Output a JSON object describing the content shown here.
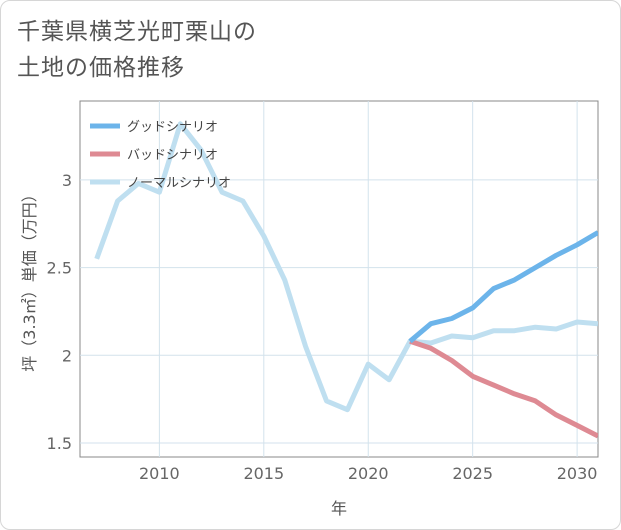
{
  "title_lines": [
    "千葉県横芝光町栗山の",
    "土地の価格推移"
  ],
  "chart_data": {
    "type": "line",
    "xlabel": "年",
    "ylabel": "坪（3.3㎡）単価（万円）",
    "xlim": [
      2006.2,
      2031
    ],
    "ylim": [
      1.42,
      3.45
    ],
    "x_ticks": [
      2010,
      2015,
      2020,
      2025,
      2030
    ],
    "x_tick_labels": [
      "2010",
      "2015",
      "2020",
      "2025",
      "2030"
    ],
    "y_ticks": [
      1.5,
      2,
      2.5,
      3
    ],
    "y_tick_labels": [
      "1.5",
      "2",
      "2.5",
      "3"
    ],
    "grid": true,
    "legend_position": "top-left",
    "series": [
      {
        "name": "グッドシナリオ",
        "color": "#6cb4ea",
        "x": [
          2022,
          2023,
          2024,
          2025,
          2026,
          2027,
          2028,
          2029,
          2030,
          2031
        ],
        "y": [
          2.08,
          2.18,
          2.21,
          2.27,
          2.38,
          2.43,
          2.5,
          2.57,
          2.63,
          2.7
        ]
      },
      {
        "name": "バッドシナリオ",
        "color": "#de8a93",
        "x": [
          2022,
          2023,
          2024,
          2025,
          2026,
          2027,
          2028,
          2029,
          2030,
          2031
        ],
        "y": [
          2.08,
          2.04,
          1.97,
          1.88,
          1.83,
          1.78,
          1.74,
          1.66,
          1.6,
          1.54
        ]
      },
      {
        "name": "ノーマルシナリオ",
        "color": "#bfdff0",
        "x": [
          2007,
          2008,
          2009,
          2010,
          2011,
          2012,
          2013,
          2014,
          2015,
          2016,
          2017,
          2018,
          2019,
          2020,
          2021,
          2022,
          2023,
          2024,
          2025,
          2026,
          2027,
          2028,
          2029,
          2030,
          2031
        ],
        "y": [
          2.55,
          2.88,
          2.98,
          2.93,
          3.32,
          3.17,
          2.93,
          2.88,
          2.68,
          2.43,
          2.05,
          1.74,
          1.69,
          1.95,
          1.86,
          2.08,
          2.07,
          2.11,
          2.1,
          2.14,
          2.14,
          2.16,
          2.15,
          2.19,
          2.18
        ]
      }
    ]
  }
}
